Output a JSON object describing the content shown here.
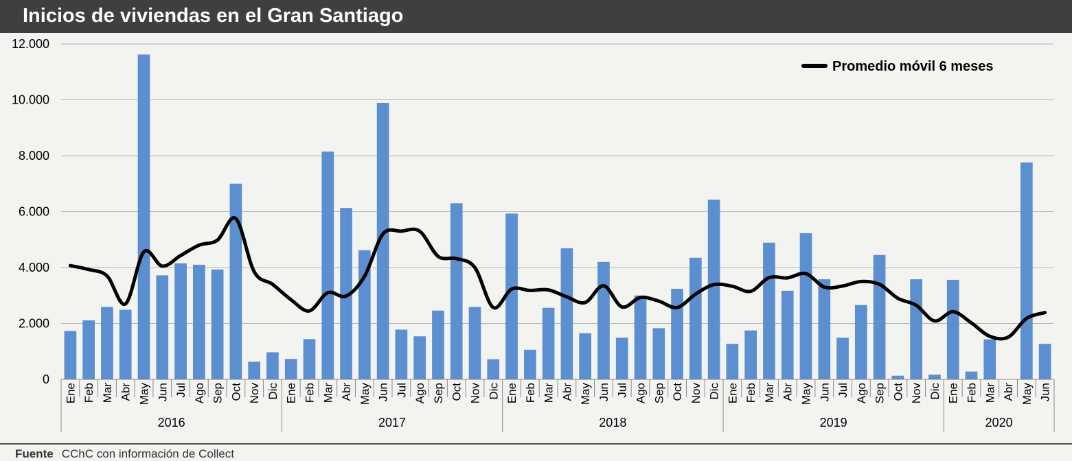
{
  "header": {
    "title": "Inicios de viviendas en el Gran Santiago"
  },
  "footer": {
    "source_label": "Fuente",
    "source_text": "CChC  con información  de Collect"
  },
  "colors": {
    "bar": "#5b8fd0",
    "line": "#000000",
    "grid": "#b5b5b5",
    "header_bg": "#3f3f3f"
  },
  "chart_data": {
    "type": "bar",
    "title": "Inicios de viviendas en el Gran Santiago",
    "ylim": [
      0,
      12000
    ],
    "yticks": [
      {
        "value": 0,
        "label": "0"
      },
      {
        "value": 2000,
        "label": "2.000"
      },
      {
        "value": 4000,
        "label": "4.000"
      },
      {
        "value": 6000,
        "label": "6.000"
      },
      {
        "value": 8000,
        "label": "8.000"
      },
      {
        "value": 10000,
        "label": "10.000"
      },
      {
        "value": 12000,
        "label": "12.000"
      }
    ],
    "grid": true,
    "legend": {
      "position": "top-right",
      "entries": [
        "Promedio móvil 6 meses"
      ]
    },
    "years": [
      {
        "label": "2016",
        "months": [
          "Ene",
          "Feb",
          "Mar",
          "Abr",
          "May",
          "Jun",
          "Jul",
          "Ago",
          "Sep",
          "Oct",
          "Nov",
          "Dic"
        ]
      },
      {
        "label": "2017",
        "months": [
          "Ene",
          "Feb",
          "Mar",
          "Abr",
          "May",
          "Jun",
          "Jul",
          "Ago",
          "Sep",
          "Oct",
          "Nov",
          "Dic"
        ]
      },
      {
        "label": "2018",
        "months": [
          "Ene",
          "Feb",
          "Mar",
          "Abr",
          "May",
          "Jun",
          "Jul",
          "Ago",
          "Sep",
          "Oct",
          "Nov",
          "Dic"
        ]
      },
      {
        "label": "2019",
        "months": [
          "Ene",
          "Feb",
          "Mar",
          "Abr",
          "May",
          "Jun",
          "Jul",
          "Ago",
          "Sep",
          "Oct",
          "Nov",
          "Dic"
        ]
      },
      {
        "label": "2020",
        "months": [
          "Ene",
          "Feb",
          "Mar",
          "Abr",
          "May",
          "Jun"
        ]
      }
    ],
    "series": [
      {
        "name": "Inicios de viviendas",
        "type": "bar",
        "values": [
          1730,
          2110,
          2590,
          2490,
          11620,
          3720,
          4150,
          4100,
          3930,
          7000,
          630,
          970,
          730,
          1440,
          8150,
          6130,
          4620,
          9890,
          1780,
          1540,
          2460,
          6300,
          2590,
          720,
          5930,
          1060,
          2560,
          4690,
          1650,
          4200,
          1490,
          3000,
          1830,
          3240,
          4350,
          6430,
          1270,
          1750,
          4890,
          3170,
          5230,
          3580,
          1490,
          2660,
          4450,
          130,
          3580,
          170,
          3560,
          280,
          1430,
          0,
          7760,
          1270
        ]
      },
      {
        "name": "Promedio móvil 6 meses",
        "type": "line",
        "values": [
          4070,
          3930,
          3700,
          2700,
          4560,
          4050,
          4430,
          4800,
          4980,
          5750,
          3850,
          3400,
          2850,
          2450,
          3100,
          2980,
          3690,
          5200,
          5300,
          5300,
          4400,
          4320,
          4000,
          2570,
          3230,
          3180,
          3200,
          2950,
          2750,
          3350,
          2590,
          2930,
          2800,
          2570,
          3050,
          3390,
          3330,
          3150,
          3640,
          3630,
          3780,
          3300,
          3340,
          3500,
          3400,
          2900,
          2650,
          2090,
          2420,
          2020,
          1540,
          1510,
          2180,
          2390
        ]
      }
    ]
  }
}
